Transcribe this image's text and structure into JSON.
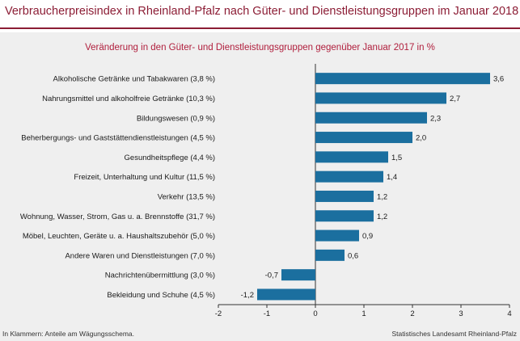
{
  "header": {
    "title": "Verbraucherpreisindex in Rheinland-Pfalz nach Güter- und Dienstleistungsgruppen im Januar 2018"
  },
  "footer": {
    "note": "In Klammern: Anteile am Wägungsschema.",
    "source": "Statistisches Landesamt Rheinland-Pfalz"
  },
  "colors": {
    "bar": "#1b6f9f",
    "title": "#8c1d35",
    "subtitle": "#b01e3c",
    "panel": "#efefef"
  },
  "chart_data": {
    "type": "bar",
    "orientation": "horizontal",
    "title": "Veränderung in den Güter- und Dienstleistungsgruppen gegenüber Januar 2017 in %",
    "categories": [
      "Alkoholische Getränke und Tabakwaren (3,8 %)",
      "Nahrungsmittel und alkoholfreie Getränke (10,3 %)",
      "Bildungswesen (0,9 %)",
      "Beherbergungs- und Gaststättendienstleistungen (4,5 %)",
      "Gesundheitspflege (4,4 %)",
      "Freizeit, Unterhaltung und Kultur (11,5 %)",
      "Verkehr (13,5 %)",
      "Wohnung, Wasser, Strom, Gas u. a. Brennstoffe (31,7 %)",
      "Möbel, Leuchten, Geräte u. a. Haushaltszubehör  (5,0 %)",
      "Andere Waren und Dienstleistungen (7,0 %)",
      "Nachrichtenübermittlung (3,0 %)",
      "Bekleidung und Schuhe (4,5 %)"
    ],
    "values": [
      3.6,
      2.7,
      2.3,
      2.0,
      1.5,
      1.4,
      1.2,
      1.2,
      0.9,
      0.6,
      -0.7,
      -1.2
    ],
    "value_labels": [
      "3,6",
      "2,7",
      "2,3",
      "2,0",
      "1,5",
      "1,4",
      "1,2",
      "1,2",
      "0,9",
      "0,6",
      "-0,7",
      "-1,2"
    ],
    "xlim": [
      -2,
      4
    ],
    "xticks": [
      -2,
      -1,
      0,
      1,
      2,
      3,
      4
    ],
    "xtick_labels": [
      "-2",
      "-1",
      "0",
      "1",
      "2",
      "3",
      "4"
    ],
    "grid": false,
    "legend": "none"
  }
}
